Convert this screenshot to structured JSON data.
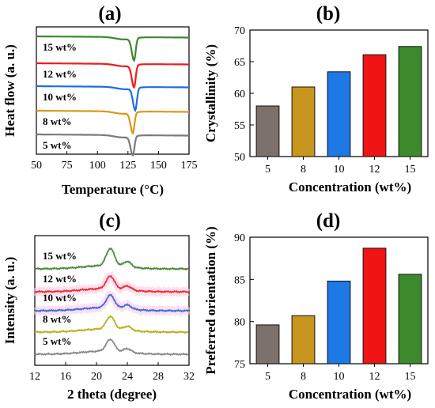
{
  "chart_data": [
    {
      "panel": "(a)",
      "type": "line",
      "xlabel": "Temperature (°C)",
      "ylabel": "Heat flow (a. u.)",
      "xlim": [
        50,
        175
      ],
      "xticks": [
        50,
        75,
        100,
        125,
        150,
        175
      ],
      "yticks_shown": false,
      "series": [
        {
          "name": "15 wt%",
          "color": "#3a8a2e",
          "peak_x": 130,
          "peak_depth": 0.55
        },
        {
          "name": "12 wt%",
          "color": "#ee1c1c",
          "peak_x": 130,
          "peak_depth": 0.65
        },
        {
          "name": "10 wt%",
          "color": "#1a6ee6",
          "peak_x": 131,
          "peak_depth": 0.75
        },
        {
          "name": "8 wt%",
          "color": "#d89a16",
          "peak_x": 129,
          "peak_depth": 0.85
        },
        {
          "name": "5 wt%",
          "color": "#7a7a7a",
          "peak_x": 129,
          "peak_depth": 0.95
        }
      ]
    },
    {
      "panel": "(b)",
      "type": "bar",
      "xlabel": "Concentration (wt%)",
      "ylabel": "Crystallinity (%)",
      "categories": [
        "5",
        "8",
        "10",
        "12",
        "15"
      ],
      "values": [
        58.0,
        61.0,
        63.4,
        66.1,
        67.4
      ],
      "colors": [
        "#7d716b",
        "#c8961e",
        "#1e78e6",
        "#f01414",
        "#3c8a2c"
      ],
      "ylim": [
        50,
        70
      ],
      "yticks": [
        50,
        55,
        60,
        65,
        70
      ]
    },
    {
      "panel": "(c)",
      "type": "line",
      "xlabel": "2 theta (degree)",
      "ylabel": "Intensity (a. u.)",
      "xlim": [
        12,
        32
      ],
      "xticks": [
        12,
        16,
        20,
        24,
        28,
        32
      ],
      "yticks_shown": false,
      "series": [
        {
          "name": "15 wt%",
          "color": "#4a8a3a",
          "peak_x": 21.8
        },
        {
          "name": "12 wt%",
          "color": "#e83030",
          "peak_x": 21.8
        },
        {
          "name": "10 wt%",
          "color": "#3a6ee0",
          "peak_x": 21.8
        },
        {
          "name": "8 wt%",
          "color": "#b8b020",
          "peak_x": 21.8
        },
        {
          "name": "5 wt%",
          "color": "#8a8a8a",
          "peak_x": 21.8
        }
      ]
    },
    {
      "panel": "(d)",
      "type": "bar",
      "xlabel": "Concentration (wt%)",
      "ylabel": "Preferred orientation (%)",
      "categories": [
        "5",
        "8",
        "10",
        "12",
        "15"
      ],
      "values": [
        79.6,
        80.7,
        84.8,
        88.7,
        85.6
      ],
      "colors": [
        "#7d716b",
        "#c8961e",
        "#1e78e6",
        "#f01414",
        "#3c8a2c"
      ],
      "ylim": [
        75,
        90
      ],
      "yticks": [
        75,
        80,
        85,
        90
      ]
    }
  ]
}
